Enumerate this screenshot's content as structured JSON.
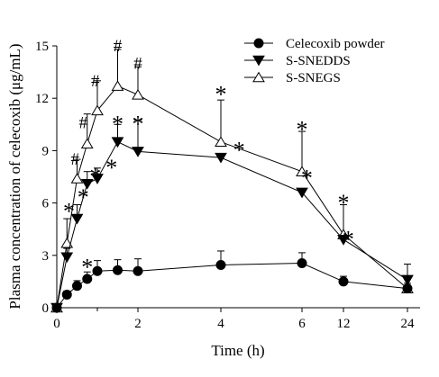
{
  "chart_data": {
    "type": "line",
    "xlabel": "Time (h)",
    "ylabel": "Plasma concentration of celecoxib (μg/mL)",
    "ylim": [
      0,
      15
    ],
    "y_ticks": [
      "0",
      "3",
      "6",
      "9",
      "12",
      "15"
    ],
    "x_ticks": [
      {
        "label": "0",
        "value": 0
      },
      {
        "label": "2",
        "value": 2
      },
      {
        "label": "4",
        "value": 4
      },
      {
        "label": "6",
        "value": 6
      },
      {
        "label": "12",
        "value": 12
      },
      {
        "label": "24",
        "value": 24
      }
    ],
    "legend_position": "top-right",
    "series": [
      {
        "name": "Celecoxib powder",
        "marker": "circle-filled",
        "color": "#000000",
        "points": [
          {
            "x": 0,
            "y": 0,
            "err": 0
          },
          {
            "x": 0.25,
            "y": 0.75,
            "err": 0.2
          },
          {
            "x": 0.5,
            "y": 1.25,
            "err": 0.3
          },
          {
            "x": 0.75,
            "y": 1.65,
            "err": 0.4
          },
          {
            "x": 1,
            "y": 2.1,
            "err": 0.6
          },
          {
            "x": 1.5,
            "y": 2.15,
            "err": 0.6
          },
          {
            "x": 2,
            "y": 2.1,
            "err": 0.7
          },
          {
            "x": 4,
            "y": 2.45,
            "err": 0.8
          },
          {
            "x": 6,
            "y": 2.55,
            "err": 0.6
          },
          {
            "x": 12,
            "y": 1.5,
            "err": 0.3
          },
          {
            "x": 24,
            "y": 1.1,
            "err": 0.3
          }
        ]
      },
      {
        "name": "S-SNEDDS",
        "marker": "triangle-down-filled",
        "color": "#000000",
        "points": [
          {
            "x": 0,
            "y": 0,
            "err": 0
          },
          {
            "x": 0.25,
            "y": 2.9,
            "err": 0.5
          },
          {
            "x": 0.5,
            "y": 5.1,
            "err": 0.8
          },
          {
            "x": 0.75,
            "y": 7.1,
            "err": 0.7
          },
          {
            "x": 1,
            "y": 7.4,
            "err": 0.6
          },
          {
            "x": 1.5,
            "y": 9.5,
            "err": 1.0
          },
          {
            "x": 2,
            "y": 8.95,
            "err": 1.8
          },
          {
            "x": 4,
            "y": 8.6,
            "err": 0
          },
          {
            "x": 6,
            "y": 6.6,
            "err": 0
          },
          {
            "x": 12,
            "y": 3.9,
            "err": 0
          },
          {
            "x": 24,
            "y": 1.6,
            "err": 0.9
          }
        ]
      },
      {
        "name": "S-SNEGS",
        "marker": "triangle-up-open",
        "color": "#000000",
        "points": [
          {
            "x": 0,
            "y": 0,
            "err": 0
          },
          {
            "x": 0.25,
            "y": 3.7,
            "err": 1.4
          },
          {
            "x": 0.5,
            "y": 7.4,
            "err": 1.1
          },
          {
            "x": 0.75,
            "y": 9.4,
            "err": 1.7
          },
          {
            "x": 1,
            "y": 11.3,
            "err": 1.7
          },
          {
            "x": 1.5,
            "y": 12.7,
            "err": 2.1
          },
          {
            "x": 2,
            "y": 12.2,
            "err": 1.6
          },
          {
            "x": 4,
            "y": 9.5,
            "err": 2.4
          },
          {
            "x": 6,
            "y": 7.8,
            "err": 2.3
          },
          {
            "x": 12,
            "y": 4.2,
            "err": 1.7
          },
          {
            "x": 24,
            "y": 1.1,
            "err": 0
          }
        ]
      }
    ],
    "annotations": [
      {
        "text": "*",
        "x": 0.3,
        "y": 5.8
      },
      {
        "text": "*",
        "x": 0.75,
        "y": 2.6
      },
      {
        "text": "*",
        "x": 0.65,
        "y": 6.6
      },
      {
        "text": "*",
        "x": 0.95,
        "y": 7.8
      },
      {
        "text": "*",
        "x": 1.35,
        "y": 8.3
      },
      {
        "text": "*",
        "x": 1.5,
        "y": 10.8
      },
      {
        "text": "*",
        "x": 2.0,
        "y": 10.8
      },
      {
        "text": "*",
        "x": 4.0,
        "y": 12.5
      },
      {
        "text": "*",
        "x": 4.45,
        "y": 9.3
      },
      {
        "text": "*",
        "x": 6.0,
        "y": 10.5
      },
      {
        "text": "*",
        "x": 6.7,
        "y": 7.7
      },
      {
        "text": "*",
        "x": 12.0,
        "y": 6.3
      },
      {
        "text": "*",
        "x": 12.9,
        "y": 4.2
      },
      {
        "text": "#",
        "x": 0.45,
        "y": 8.5
      },
      {
        "text": "#",
        "x": 0.65,
        "y": 10.6
      },
      {
        "text": "#",
        "x": 0.95,
        "y": 13.0
      },
      {
        "text": "#",
        "x": 1.5,
        "y": 15.0
      },
      {
        "text": "#",
        "x": 2.0,
        "y": 14.0
      }
    ]
  }
}
